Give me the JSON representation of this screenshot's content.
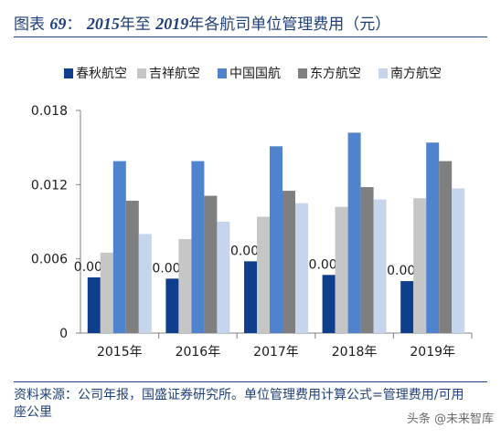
{
  "header": {
    "title_prefix": "图表",
    "figure_no": "69",
    "colon": "：",
    "year_start": "2015",
    "middle": "年至",
    "year_end": "2019",
    "suffix": "年各航司单位管理费用（元）"
  },
  "footer": {
    "source": "资料来源：公司年报，国盛证券研究所。单位管理费用计算公式=管理费用/可用座公里",
    "watermark": "头条 @未来智库"
  },
  "colors": {
    "chunqiu": "#0e3e8c",
    "jixiang": "#c6c6c6",
    "guohang": "#4f83cd",
    "dongfang": "#7f7f7f",
    "nanfang": "#c5d5ec",
    "accent": "#1f3f77"
  },
  "chart_data": {
    "type": "bar",
    "title": "",
    "xlabel": "",
    "ylabel": "",
    "ylim": [
      0,
      0.018
    ],
    "yticks": [
      0,
      0.006,
      0.012,
      0.018
    ],
    "ytick_labels": [
      "0",
      "0.006",
      "0.012",
      "0.018"
    ],
    "categories": [
      "2015年",
      "2016年",
      "2017年",
      "2018年",
      "2019年"
    ],
    "legend_position": "top",
    "grid": false,
    "series": [
      {
        "name": "春秋航空",
        "color": "#0e3e8c",
        "values": [
          0.0045,
          0.0044,
          0.0058,
          0.0047,
          0.0042
        ],
        "data_labels": [
          "0.004",
          "0.004",
          "0.006",
          "0.005",
          "0.004"
        ]
      },
      {
        "name": "吉祥航空",
        "color": "#c6c6c6",
        "values": [
          0.0065,
          0.0076,
          0.0094,
          0.0102,
          0.0109
        ]
      },
      {
        "name": "中国国航",
        "color": "#4f83cd",
        "values": [
          0.0139,
          0.0139,
          0.0151,
          0.0162,
          0.0154
        ]
      },
      {
        "name": "东方航空",
        "color": "#7f7f7f",
        "values": [
          0.0107,
          0.0111,
          0.0115,
          0.0118,
          0.0139
        ]
      },
      {
        "name": "南方航空",
        "color": "#c5d5ec",
        "values": [
          0.008,
          0.009,
          0.0105,
          0.0108,
          0.0117
        ]
      }
    ]
  }
}
